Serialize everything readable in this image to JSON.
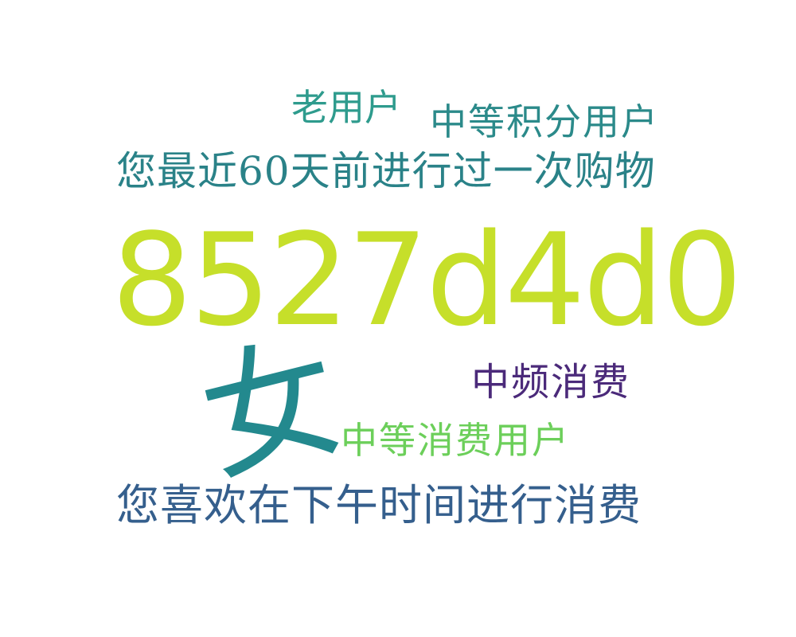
{
  "words": {
    "laoyonghu": {
      "text": "老用户",
      "color": "#2e9b8d"
    },
    "zhongdengjifen": {
      "text": "中等积分用户",
      "color": "#2b8a8a"
    },
    "zuijin": {
      "text": "您最近60天前进行过一次购物",
      "color": "#2a8288"
    },
    "id": {
      "text": "8527d4d0",
      "color": "#c6df2a"
    },
    "zhongpin": {
      "text": "中频消费",
      "color": "#4b2a7a"
    },
    "zhongdengxiaofei": {
      "text": "中等消费用户",
      "color": "#6ccf5a"
    },
    "afternoon": {
      "text": "您喜欢在下午时间进行消费",
      "color": "#355f8d"
    },
    "nv": {
      "text": "女",
      "color": "#23898e"
    }
  }
}
